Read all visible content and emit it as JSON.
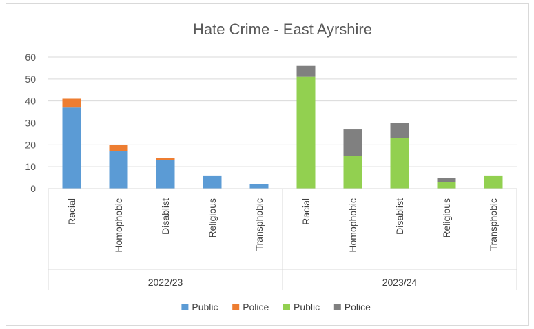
{
  "chart_data": {
    "type": "bar",
    "stacked": true,
    "title": "Hate Crime - East Ayrshire",
    "xlabel": "",
    "ylabel": "",
    "ylim": [
      0,
      60
    ],
    "yticks": [
      0,
      10,
      20,
      30,
      40,
      50,
      60
    ],
    "grid": true,
    "legend_position": "bottom",
    "groups": [
      {
        "label": "2022/23",
        "categories": [
          "Racial",
          "Homophobic",
          "Disablist",
          "Religious",
          "Transphobic"
        ],
        "series": [
          {
            "name": "Public",
            "color": "#5b9bd5",
            "values": [
              37,
              17,
              13,
              6,
              2
            ]
          },
          {
            "name": "Police",
            "color": "#ed7d31",
            "values": [
              4,
              3,
              1,
              0,
              0
            ]
          }
        ]
      },
      {
        "label": "2023/24",
        "categories": [
          "Racial",
          "Homophobic",
          "Disablist",
          "Religious",
          "Transphobic"
        ],
        "series": [
          {
            "name": "Public",
            "color": "#92d050",
            "values": [
              51,
              15,
              23,
              3,
              6
            ]
          },
          {
            "name": "Police",
            "color": "#808080",
            "values": [
              5,
              12,
              7,
              2,
              0
            ]
          }
        ]
      }
    ]
  }
}
